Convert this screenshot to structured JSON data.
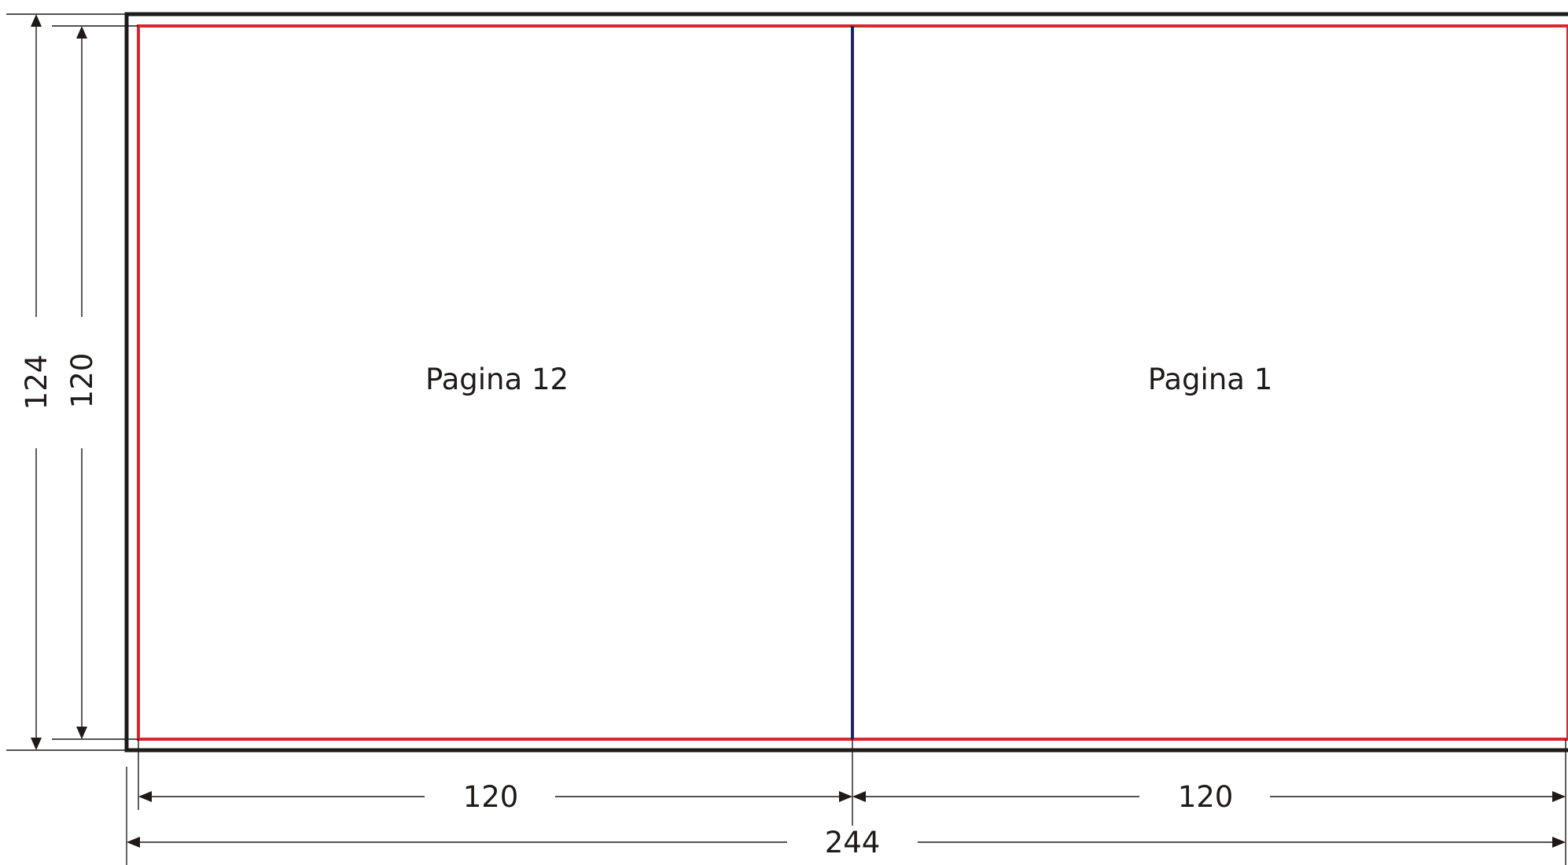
{
  "pages": {
    "left_label": "Pagina 12",
    "right_label": "Pagina 1"
  },
  "dimensions": {
    "outer_height": "124",
    "inner_height": "120",
    "left_width": "120",
    "right_width": "120",
    "total_width": "244"
  },
  "colors": {
    "outer_border": "#1f1a17",
    "trim_line": "#d42a2f",
    "fold_line": "#23206b",
    "dimension_line": "#1f1a17",
    "background": "#ffffff"
  }
}
